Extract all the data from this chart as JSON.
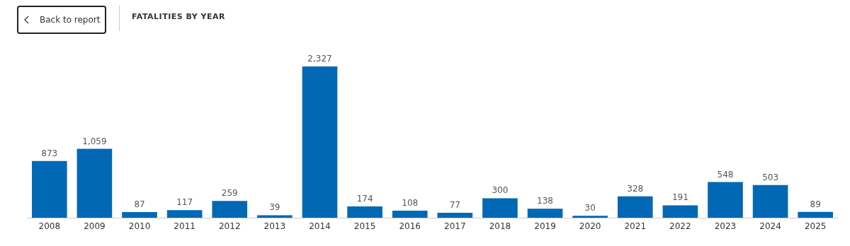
{
  "chart_data": {
    "type": "bar",
    "title": "FATALITIES BY YEAR",
    "annotations": [
      "Back to report"
    ],
    "categories": [
      "2008",
      "2009",
      "2010",
      "2011",
      "2012",
      "2013",
      "2014",
      "2015",
      "2016",
      "2017",
      "2018",
      "2019",
      "2020",
      "2021",
      "2022",
      "2023",
      "2024",
      "2025"
    ],
    "values": [
      873,
      1059,
      87,
      117,
      259,
      39,
      2327,
      174,
      108,
      77,
      300,
      138,
      30,
      328,
      191,
      548,
      503,
      89
    ],
    "value_labels": [
      "873",
      "1,059",
      "87",
      "117",
      "259",
      "39",
      "2,327",
      "174",
      "108",
      "77",
      "300",
      "138",
      "30",
      "328",
      "191",
      "548",
      "503",
      "89"
    ],
    "color": "#0068b5"
  }
}
